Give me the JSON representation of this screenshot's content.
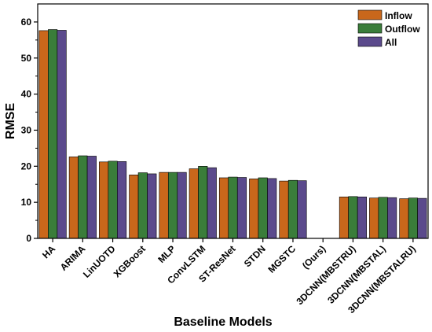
{
  "chart_data": {
    "type": "bar",
    "xlabel": "Baseline Models",
    "ylabel": "RMSE",
    "ylim": [
      0,
      65
    ],
    "yticks": [
      0,
      10,
      20,
      30,
      40,
      50,
      60
    ],
    "grid": false,
    "legend_position": "top-right",
    "categories": [
      "HA",
      "ARIMA",
      "LinUOTD",
      "XGBoost",
      "MLP",
      "ConvLSTM",
      "ST-ResNet",
      "STDN",
      "MGSTC",
      "(Ours)",
      "3DCNN(MBSTRU)",
      "3DCNN(MBSTAL)",
      "3DCNN(MBSTALRU)"
    ],
    "series": [
      {
        "name": "Inflow",
        "color": "#c9671b",
        "values": [
          57.6,
          22.6,
          21.2,
          17.6,
          18.3,
          19.3,
          16.8,
          16.5,
          15.9,
          null,
          11.5,
          11.2,
          11.0
        ]
      },
      {
        "name": "Outflow",
        "color": "#3a7d3a",
        "values": [
          57.9,
          22.9,
          21.4,
          18.2,
          18.3,
          20.0,
          17.0,
          16.8,
          16.1,
          null,
          11.6,
          11.4,
          11.2
        ]
      },
      {
        "name": "All",
        "color": "#5b4a8c",
        "values": [
          57.7,
          22.8,
          21.3,
          17.9,
          18.3,
          19.6,
          16.9,
          16.6,
          16.0,
          null,
          11.5,
          11.3,
          11.1
        ]
      }
    ]
  }
}
